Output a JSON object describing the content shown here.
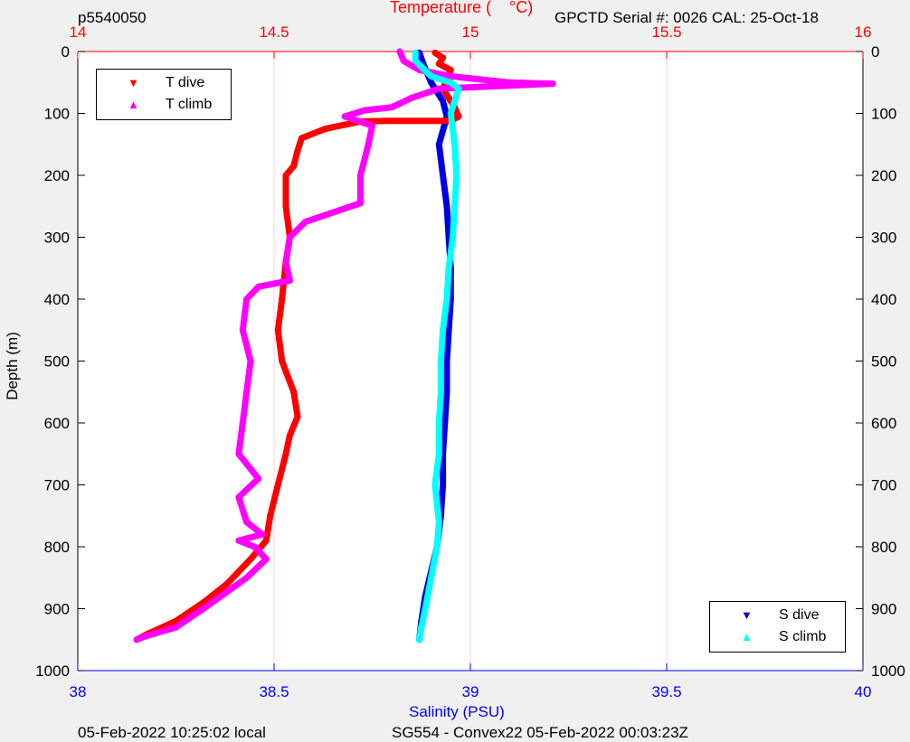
{
  "header": {
    "profile_id": "p5540050",
    "temp_label_part1": "Temperature (",
    "temp_label_part2": "°C)",
    "serial_text": "GPCTD Serial #: 0026 CAL: 25-Oct-18"
  },
  "footer": {
    "local_time": "05-Feb-2022 10:25:02 local",
    "mission": "SG554 - Convex22 05-Feb-2022 00:03:23Z"
  },
  "colors": {
    "t_dive": "#ff0000",
    "t_climb": "#ff00ff",
    "s_dive": "#0000e0",
    "s_climb": "#00ffff",
    "temp_axis": "#ff0000",
    "sal_axis": "#0000ff",
    "grid": "#ffd0d0",
    "plot_bg": "#ffffff",
    "figure_bg": "#f0f0f0"
  },
  "legend_temp": {
    "placement": "top-left",
    "entries": [
      {
        "label": "T dive",
        "symbol": "▼",
        "color": "#ff0000"
      },
      {
        "label": "T climb",
        "symbol": "▲",
        "color": "#ff00ff"
      }
    ]
  },
  "legend_sal": {
    "placement": "bottom-right",
    "entries": [
      {
        "label": "S dive",
        "symbol": "▼",
        "color": "#0000e0"
      },
      {
        "label": "S climb",
        "symbol": "▲",
        "color": "#00ffff"
      }
    ]
  },
  "chart_data": {
    "type": "line",
    "ylabel": "Depth (m)",
    "xlabel_bottom": "Salinity (PSU)",
    "ylim": [
      0,
      1000
    ],
    "y_reversed": true,
    "x_top_lim": [
      14,
      16
    ],
    "x_bottom_lim": [
      38,
      40
    ],
    "y_ticks": [
      "0",
      "100",
      "200",
      "300",
      "400",
      "500",
      "600",
      "700",
      "800",
      "900",
      "1000"
    ],
    "x_top_ticks": [
      "14",
      "14.5",
      "15",
      "15.5",
      "16"
    ],
    "x_bottom_ticks": [
      "38",
      "38.5",
      "39",
      "39.5",
      "40"
    ],
    "grid": "vertical",
    "series": [
      {
        "name": "T dive",
        "axis": "temperature",
        "marker": "triangle-down",
        "points": [
          [
            14.91,
            2
          ],
          [
            14.93,
            10
          ],
          [
            14.92,
            20
          ],
          [
            14.95,
            30
          ],
          [
            14.93,
            60
          ],
          [
            14.96,
            90
          ],
          [
            14.97,
            105
          ],
          [
            14.95,
            112
          ],
          [
            14.79,
            112
          ],
          [
            14.72,
            113
          ],
          [
            14.63,
            125
          ],
          [
            14.57,
            140
          ],
          [
            14.56,
            160
          ],
          [
            14.55,
            185
          ],
          [
            14.53,
            200
          ],
          [
            14.53,
            250
          ],
          [
            14.54,
            300
          ],
          [
            14.53,
            340
          ],
          [
            14.52,
            400
          ],
          [
            14.51,
            450
          ],
          [
            14.52,
            500
          ],
          [
            14.55,
            550
          ],
          [
            14.56,
            590
          ],
          [
            14.54,
            620
          ],
          [
            14.53,
            650
          ],
          [
            14.51,
            700
          ],
          [
            14.49,
            750
          ],
          [
            14.48,
            790
          ],
          [
            14.44,
            820
          ],
          [
            14.38,
            860
          ],
          [
            14.32,
            890
          ],
          [
            14.25,
            920
          ],
          [
            14.18,
            940
          ],
          [
            14.15,
            950
          ]
        ]
      },
      {
        "name": "T climb",
        "axis": "temperature",
        "marker": "triangle-up",
        "points": [
          [
            14.82,
            0
          ],
          [
            14.83,
            15
          ],
          [
            14.87,
            30
          ],
          [
            14.95,
            40
          ],
          [
            15.1,
            50
          ],
          [
            15.21,
            52
          ],
          [
            14.92,
            60
          ],
          [
            14.85,
            75
          ],
          [
            14.8,
            90
          ],
          [
            14.73,
            95
          ],
          [
            14.68,
            105
          ],
          [
            14.75,
            120
          ],
          [
            14.74,
            150
          ],
          [
            14.72,
            200
          ],
          [
            14.72,
            245
          ],
          [
            14.65,
            260
          ],
          [
            14.58,
            275
          ],
          [
            14.54,
            300
          ],
          [
            14.53,
            340
          ],
          [
            14.54,
            370
          ],
          [
            14.46,
            380
          ],
          [
            14.43,
            400
          ],
          [
            14.42,
            450
          ],
          [
            14.44,
            500
          ],
          [
            14.43,
            550
          ],
          [
            14.42,
            600
          ],
          [
            14.41,
            650
          ],
          [
            14.46,
            690
          ],
          [
            14.41,
            720
          ],
          [
            14.43,
            760
          ],
          [
            14.47,
            780
          ],
          [
            14.41,
            790
          ],
          [
            14.45,
            800
          ],
          [
            14.48,
            820
          ],
          [
            14.43,
            850
          ],
          [
            14.32,
            900
          ],
          [
            14.25,
            930
          ],
          [
            14.17,
            945
          ],
          [
            14.15,
            950
          ]
        ]
      },
      {
        "name": "S dive",
        "axis": "salinity",
        "marker": "triangle-down",
        "points": [
          [
            38.87,
            2
          ],
          [
            38.88,
            20
          ],
          [
            38.9,
            50
          ],
          [
            38.93,
            80
          ],
          [
            38.94,
            105
          ],
          [
            38.92,
            150
          ],
          [
            38.93,
            200
          ],
          [
            38.94,
            250
          ],
          [
            38.945,
            300
          ],
          [
            38.95,
            350
          ],
          [
            38.95,
            400
          ],
          [
            38.945,
            450
          ],
          [
            38.94,
            500
          ],
          [
            38.94,
            550
          ],
          [
            38.935,
            600
          ],
          [
            38.93,
            650
          ],
          [
            38.93,
            700
          ],
          [
            38.925,
            750
          ],
          [
            38.915,
            800
          ],
          [
            38.9,
            840
          ],
          [
            38.885,
            880
          ],
          [
            38.875,
            920
          ],
          [
            38.87,
            950
          ]
        ]
      },
      {
        "name": "S climb",
        "axis": "salinity",
        "marker": "triangle-up",
        "points": [
          [
            38.86,
            2
          ],
          [
            38.86,
            15
          ],
          [
            38.9,
            40
          ],
          [
            38.95,
            50
          ],
          [
            38.97,
            60
          ],
          [
            38.95,
            100
          ],
          [
            38.96,
            150
          ],
          [
            38.965,
            200
          ],
          [
            38.96,
            250
          ],
          [
            38.955,
            300
          ],
          [
            38.945,
            350
          ],
          [
            38.94,
            400
          ],
          [
            38.93,
            450
          ],
          [
            38.925,
            500
          ],
          [
            38.925,
            550
          ],
          [
            38.92,
            600
          ],
          [
            38.92,
            650
          ],
          [
            38.91,
            700
          ],
          [
            38.92,
            760
          ],
          [
            38.915,
            800
          ],
          [
            38.9,
            850
          ],
          [
            38.885,
            900
          ],
          [
            38.875,
            930
          ],
          [
            38.87,
            950
          ]
        ]
      }
    ]
  }
}
